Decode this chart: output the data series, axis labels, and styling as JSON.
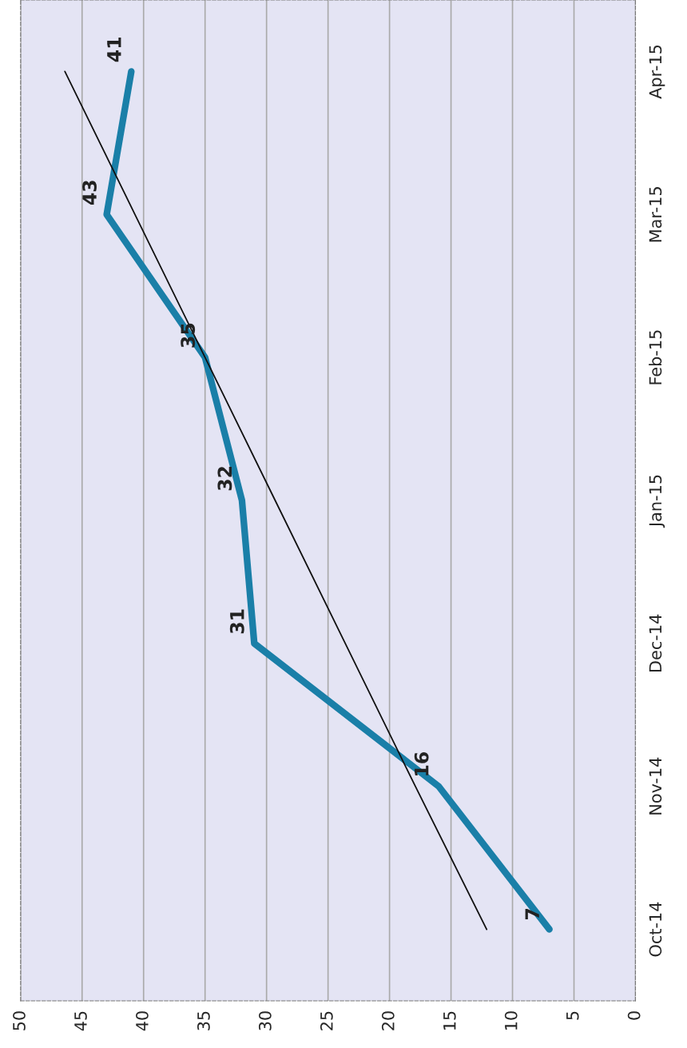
{
  "chart_data": {
    "type": "line",
    "orientation": "horizontal",
    "categories": [
      "Apr-15",
      "Mar-15",
      "Feb-15",
      "Jan-15",
      "Dec-14",
      "Nov-14",
      "Oct-14"
    ],
    "series": [
      {
        "color": "#1a7fa8",
        "values": [
          41,
          43,
          35,
          32,
          31,
          16,
          7
        ],
        "data_labels": true
      },
      {
        "type": "line",
        "color": "#111111",
        "values": [
          46.4,
          40.7,
          35.0,
          29.3,
          23.6,
          17.9,
          12.1
        ]
      }
    ],
    "xlim": [
      50,
      0
    ],
    "xticks": [
      50,
      45,
      40,
      35,
      30,
      25,
      20,
      15,
      10,
      5,
      0
    ],
    "grid": "x",
    "legend": false,
    "marker": "none"
  }
}
